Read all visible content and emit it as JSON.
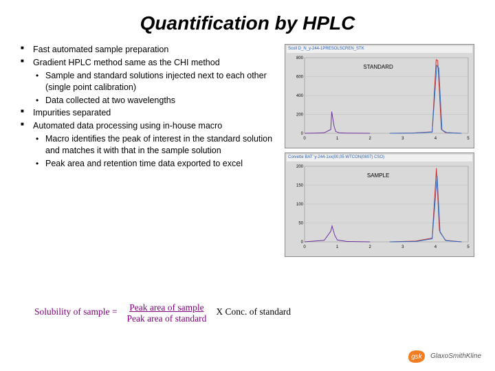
{
  "title": "Quantification by HPLC",
  "bullets": {
    "b1": "Fast automated sample preparation",
    "b2": "Gradient HPLC method same as the CHI method",
    "b2s1": "Sample and standard solutions injected next to each other (single point calibration)",
    "b2s2": "Data collected at two wavelengths",
    "b3": "Impurities separated",
    "b4": "Automated data processing using in-house macro",
    "b4s1": "Macro identifies the peak of interest in the standard solution and matches it with that in the sample solution",
    "b4s2": "Peak area and retention time data exported to excel"
  },
  "formula": {
    "lhs": "Solubility of sample  =",
    "num": "Peak area of sample ",
    "den": "Peak area of standard",
    "rhs": "X   Conc. of standard"
  },
  "charts": {
    "top": {
      "header": "Scoll D_N_y-244-1PRESOLSCREN_STK",
      "label": "STANDARD",
      "ylim": [
        0,
        800
      ],
      "yticks": [
        0,
        200,
        400,
        600,
        800
      ],
      "xlim": [
        0,
        5
      ],
      "xticks": [
        0,
        1,
        2,
        3,
        4,
        5
      ],
      "bg": "#d9d9d9",
      "grid_color": "#c0c0c0",
      "peaks": [
        {
          "line": [
            [
              0,
              0
            ],
            [
              0.3,
              2
            ],
            [
              0.6,
              5
            ],
            [
              0.8,
              40
            ],
            [
              0.83,
              230
            ],
            [
              0.9,
              80
            ],
            [
              0.95,
              20
            ],
            [
              1.05,
              6
            ],
            [
              1.3,
              2
            ],
            [
              2.0,
              0
            ]
          ],
          "color": "#7030a0"
        },
        {
          "line": [
            [
              2.6,
              0
            ],
            [
              3.3,
              3
            ],
            [
              3.9,
              15
            ],
            [
              4.02,
              780
            ],
            [
              4.07,
              770
            ],
            [
              4.18,
              40
            ],
            [
              4.3,
              8
            ],
            [
              4.8,
              0
            ]
          ],
          "color": "#cc3333"
        },
        {
          "line": [
            [
              2.6,
              0
            ],
            [
              3.3,
              2
            ],
            [
              3.9,
              12
            ],
            [
              4.04,
              720
            ],
            [
              4.1,
              690
            ],
            [
              4.2,
              35
            ],
            [
              4.35,
              6
            ],
            [
              4.8,
              0
            ]
          ],
          "color": "#2a6bcc"
        }
      ]
    },
    "bottom": {
      "header": "Corvette BAT' y-244-1xx(00,05 WTCON(0807) CSO)",
      "label": "SAMPLE",
      "ylim": [
        0,
        200
      ],
      "yticks": [
        0,
        50,
        100,
        150,
        200
      ],
      "xlim": [
        0,
        5
      ],
      "xticks": [
        0,
        1,
        2,
        3,
        4,
        5
      ],
      "bg": "#d9d9d9",
      "grid_color": "#c0c0c0",
      "peaks": [
        {
          "line": [
            [
              0,
              0
            ],
            [
              0.3,
              2
            ],
            [
              0.6,
              4
            ],
            [
              0.8,
              28
            ],
            [
              0.84,
              42
            ],
            [
              0.92,
              18
            ],
            [
              1.0,
              5
            ],
            [
              1.3,
              1
            ],
            [
              2.0,
              0
            ]
          ],
          "color": "#7030a0"
        },
        {
          "line": [
            [
              2.6,
              0
            ],
            [
              3.4,
              2
            ],
            [
              3.9,
              10
            ],
            [
              4.03,
              195
            ],
            [
              4.12,
              30
            ],
            [
              4.3,
              4
            ],
            [
              4.8,
              0
            ]
          ],
          "color": "#cc3333"
        },
        {
          "line": [
            [
              2.6,
              0
            ],
            [
              3.4,
              1
            ],
            [
              3.9,
              8
            ],
            [
              4.05,
              175
            ],
            [
              4.14,
              25
            ],
            [
              4.32,
              3
            ],
            [
              4.8,
              0
            ]
          ],
          "color": "#2a6bcc"
        }
      ]
    }
  },
  "footer": {
    "brand": "GlaxoSmithKline",
    "logo_bg": "#f47c20",
    "logo_text": "gsk"
  }
}
